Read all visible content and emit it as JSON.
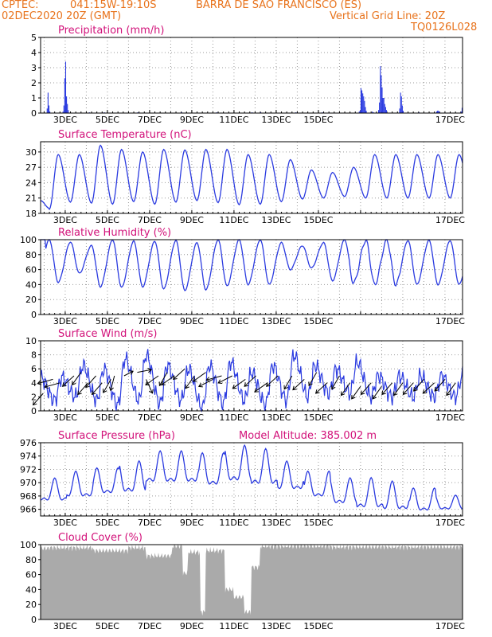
{
  "header": {
    "left1": "CPTEC:",
    "coords": "041:15W-19:10S",
    "station": "BARRA DE SAO FRANCISCO (ES)",
    "left2": "02DEC2020 20Z (GMT)",
    "right1": "Vertical Grid Line: 20Z",
    "right2": "TQ0126L028"
  },
  "colors": {
    "series": "#2b3be0",
    "title": "#d2127a",
    "header": "#e8731c",
    "cloud": "#aaaaaa"
  },
  "chart_data": [
    {
      "type": "bar",
      "title": "Precipitation (mm/h)",
      "ylim": [
        0,
        5
      ],
      "yticks": [
        0,
        1,
        2,
        3,
        4,
        5
      ],
      "x_start": "02DEC2020 20Z",
      "x_step_hours": 1,
      "grid": true,
      "xticks": [
        "3DEC",
        "5DEC",
        "7DEC",
        "9DEC",
        "11DEC",
        "13DEC",
        "15DEC",
        "17DEC"
      ],
      "events": [
        [
          7,
          0.3
        ],
        [
          8,
          1.35
        ],
        [
          9,
          0.5
        ],
        [
          10,
          0.1
        ],
        [
          25,
          0.1
        ],
        [
          26,
          0.5
        ],
        [
          27,
          2.3
        ],
        [
          28,
          3.4
        ],
        [
          29,
          1.1
        ],
        [
          30,
          0.6
        ],
        [
          31,
          0.2
        ],
        [
          55,
          0.05
        ],
        [
          72,
          0.05
        ],
        [
          110,
          0.05
        ],
        [
          160,
          0.05
        ],
        [
          200,
          0.05
        ],
        [
          240,
          0.05
        ],
        [
          250,
          0.05
        ],
        [
          290,
          0.05
        ],
        [
          320,
          0.05
        ],
        [
          362,
          0.1
        ],
        [
          363,
          0.15
        ],
        [
          364,
          1.65
        ],
        [
          365,
          1.5
        ],
        [
          366,
          1.3
        ],
        [
          367,
          1.1
        ],
        [
          368,
          0.8
        ],
        [
          369,
          0.4
        ],
        [
          370,
          0.15
        ],
        [
          377,
          0.1
        ],
        [
          378,
          0.05
        ],
        [
          384,
          0.2
        ],
        [
          385,
          0.7
        ],
        [
          386,
          3.1
        ],
        [
          387,
          2.5
        ],
        [
          388,
          1.7
        ],
        [
          389,
          1.0
        ],
        [
          390,
          1.0
        ],
        [
          391,
          0.6
        ],
        [
          392,
          0.4
        ],
        [
          393,
          0.2
        ],
        [
          408,
          0.3
        ],
        [
          409,
          1.35
        ],
        [
          410,
          1.1
        ],
        [
          411,
          0.5
        ],
        [
          412,
          0.15
        ],
        [
          430,
          0.05
        ],
        [
          450,
          0.1
        ],
        [
          451,
          0.15
        ],
        [
          452,
          0.15
        ],
        [
          453,
          0.1
        ],
        [
          478,
          0.1
        ],
        [
          479,
          0.35
        ]
      ]
    },
    {
      "type": "line",
      "title": "Surface Temperature (nC)",
      "ylim": [
        18,
        32
      ],
      "yticks": [
        18,
        21,
        24,
        27,
        30
      ],
      "x_start": "02DEC2020 20Z",
      "x_step_hours": 1,
      "grid": true,
      "xticks": [
        "3DEC",
        "5DEC",
        "7DEC",
        "9DEC",
        "11DEC",
        "13DEC",
        "15DEC",
        "17DEC"
      ],
      "min_temps": [
        18.8,
        20.2,
        20.0,
        19.8,
        20.3,
        19.8,
        20.2,
        20.5,
        20.1,
        19.7,
        19.8,
        20.3,
        20.8,
        21.0,
        21.3,
        21.0
      ],
      "max_temps": [
        29.5,
        29.5,
        31.3,
        30.5,
        30.0,
        30.5,
        30.4,
        30.5,
        30.5,
        29.5,
        29.5,
        28.5,
        26.5,
        26.0,
        27.0,
        29.5
      ]
    },
    {
      "type": "line",
      "title": "Relative Humidity (%)",
      "ylim": [
        0,
        100
      ],
      "yticks": [
        0,
        20,
        40,
        60,
        80,
        100
      ],
      "x_start": "02DEC2020 20Z",
      "x_step_hours": 1,
      "grid": true,
      "xticks": [
        "3DEC",
        "5DEC",
        "7DEC",
        "9DEC",
        "11DEC",
        "13DEC",
        "15DEC",
        "17DEC"
      ],
      "peaks": [
        100,
        97,
        92,
        100,
        98,
        98,
        99,
        96,
        100,
        100,
        100,
        96,
        92,
        96,
        100,
        99
      ],
      "troughs": [
        43,
        55,
        37,
        36,
        37,
        34,
        32,
        33,
        38,
        40,
        40,
        60,
        62,
        45,
        42,
        40
      ]
    },
    {
      "type": "line",
      "title": "Surface Wind (m/s)",
      "ylim": [
        0,
        10
      ],
      "yticks": [
        0,
        2,
        4,
        6,
        8,
        10
      ],
      "x_start": "02DEC2020 20Z",
      "x_step_hours": 1,
      "grid": true,
      "xticks": [
        "3DEC",
        "5DEC",
        "7DEC",
        "9DEC",
        "11DEC",
        "13DEC",
        "15DEC",
        "17DEC"
      ],
      "daily_peak": [
        4.8,
        6.5,
        6.0,
        7.5,
        8.0,
        6.5,
        6.0,
        6.5,
        7.0,
        5.5,
        6.5,
        8.0,
        6.5,
        6.0,
        7.0,
        5.0
      ],
      "daily_min": [
        1.5,
        2.0,
        1.5,
        0.8,
        1.5,
        1.0,
        1.5,
        0.3,
        1.0,
        1.5,
        0.8,
        1.5,
        2.0,
        2.5,
        2.5,
        2.0
      ],
      "wind_vectors": [
        [
          3,
          2.5,
          -8
        ],
        [
          14,
          4.5,
          -12
        ],
        [
          22,
          4.0,
          -12
        ],
        [
          38,
          5.0,
          -9
        ],
        [
          46,
          5.5,
          -7
        ],
        [
          54,
          4.0,
          -8
        ],
        [
          63,
          5.0,
          -8
        ],
        [
          70,
          4.0,
          -8
        ],
        [
          80,
          4.5,
          -6
        ],
        [
          84,
          5.0,
          -3
        ],
        [
          95,
          5.0,
          7
        ],
        [
          110,
          5.5,
          11
        ],
        [
          120,
          4.5,
          5
        ],
        [
          134,
          5.0,
          -10
        ],
        [
          144,
          5.5,
          -6
        ],
        [
          152,
          5.0,
          -10
        ],
        [
          164,
          6.0,
          -9
        ],
        [
          175,
          5.0,
          -7
        ],
        [
          188,
          5.5,
          -10
        ],
        [
          196,
          4.5,
          -11
        ],
        [
          206,
          5.0,
          -12
        ],
        [
          218,
          5.0,
          -11
        ],
        [
          233,
          4.5,
          -10
        ],
        [
          245,
          5.0,
          -9
        ],
        [
          258,
          4.0,
          -10
        ],
        [
          270,
          5.0,
          -9
        ],
        [
          286,
          5.0,
          -6
        ],
        [
          300,
          4.5,
          -9
        ],
        [
          314,
          5.5,
          -6
        ],
        [
          326,
          4.0,
          -9
        ],
        [
          340,
          5.0,
          -6
        ],
        [
          352,
          4.0,
          -7
        ],
        [
          364,
          3.5,
          -7
        ],
        [
          376,
          4.0,
          -8
        ],
        [
          388,
          3.5,
          -7
        ],
        [
          400,
          4.0,
          -8
        ],
        [
          412,
          4.0,
          -7
        ],
        [
          424,
          4.0,
          -8
        ],
        [
          436,
          4.5,
          -8
        ],
        [
          448,
          4.0,
          -9
        ],
        [
          460,
          4.5,
          -8
        ],
        [
          472,
          4.0,
          -7
        ]
      ]
    },
    {
      "type": "line",
      "title": "Surface Pressure (hPa)",
      "annotation": "Model Altitude: 385.002 m",
      "ylim": [
        965,
        976
      ],
      "yticks": [
        966,
        968,
        970,
        972,
        974,
        976
      ],
      "x_start": "02DEC2020 20Z",
      "x_step_hours": 1,
      "grid": true,
      "xticks": [
        "3DEC",
        "5DEC",
        "7DEC",
        "9DEC",
        "11DEC",
        "13DEC",
        "15DEC",
        "17DEC"
      ],
      "daily_max": [
        970.5,
        971.5,
        972.0,
        973.0,
        974.5,
        974.5,
        974.2,
        975.3,
        974.8,
        973.0,
        971.5,
        970.5,
        970.5,
        970.0,
        969.0,
        968.0
      ],
      "daily_min": [
        966.5,
        967.0,
        967.5,
        967.5,
        969.0,
        969.0,
        968.5,
        969.0,
        968.5,
        968.0,
        967.0,
        966.0,
        965.2,
        965.0,
        965.0,
        965.5
      ]
    },
    {
      "type": "area",
      "title": "Cloud Cover (%)",
      "ylim": [
        0,
        100
      ],
      "yticks": [
        0,
        20,
        40,
        60,
        80,
        100
      ],
      "x_start": "02DEC2020 20Z",
      "x_step_hours": 1,
      "grid": false,
      "xticks": [
        "3DEC",
        "5DEC",
        "7DEC",
        "9DEC",
        "11DEC",
        "13DEC",
        "15DEC",
        "17DEC"
      ],
      "typical": 96,
      "dips": [
        [
          0,
          10,
          95
        ],
        [
          60,
          100,
          92
        ],
        [
          120,
          150,
          85
        ],
        [
          150,
          162,
          98
        ],
        [
          162,
          168,
          62
        ],
        [
          168,
          182,
          90
        ],
        [
          182,
          188,
          10
        ],
        [
          188,
          210,
          92
        ],
        [
          210,
          220,
          40
        ],
        [
          220,
          232,
          30
        ],
        [
          232,
          240,
          10
        ],
        [
          240,
          250,
          70
        ],
        [
          250,
          330,
          98
        ],
        [
          330,
          480,
          97
        ]
      ]
    }
  ]
}
